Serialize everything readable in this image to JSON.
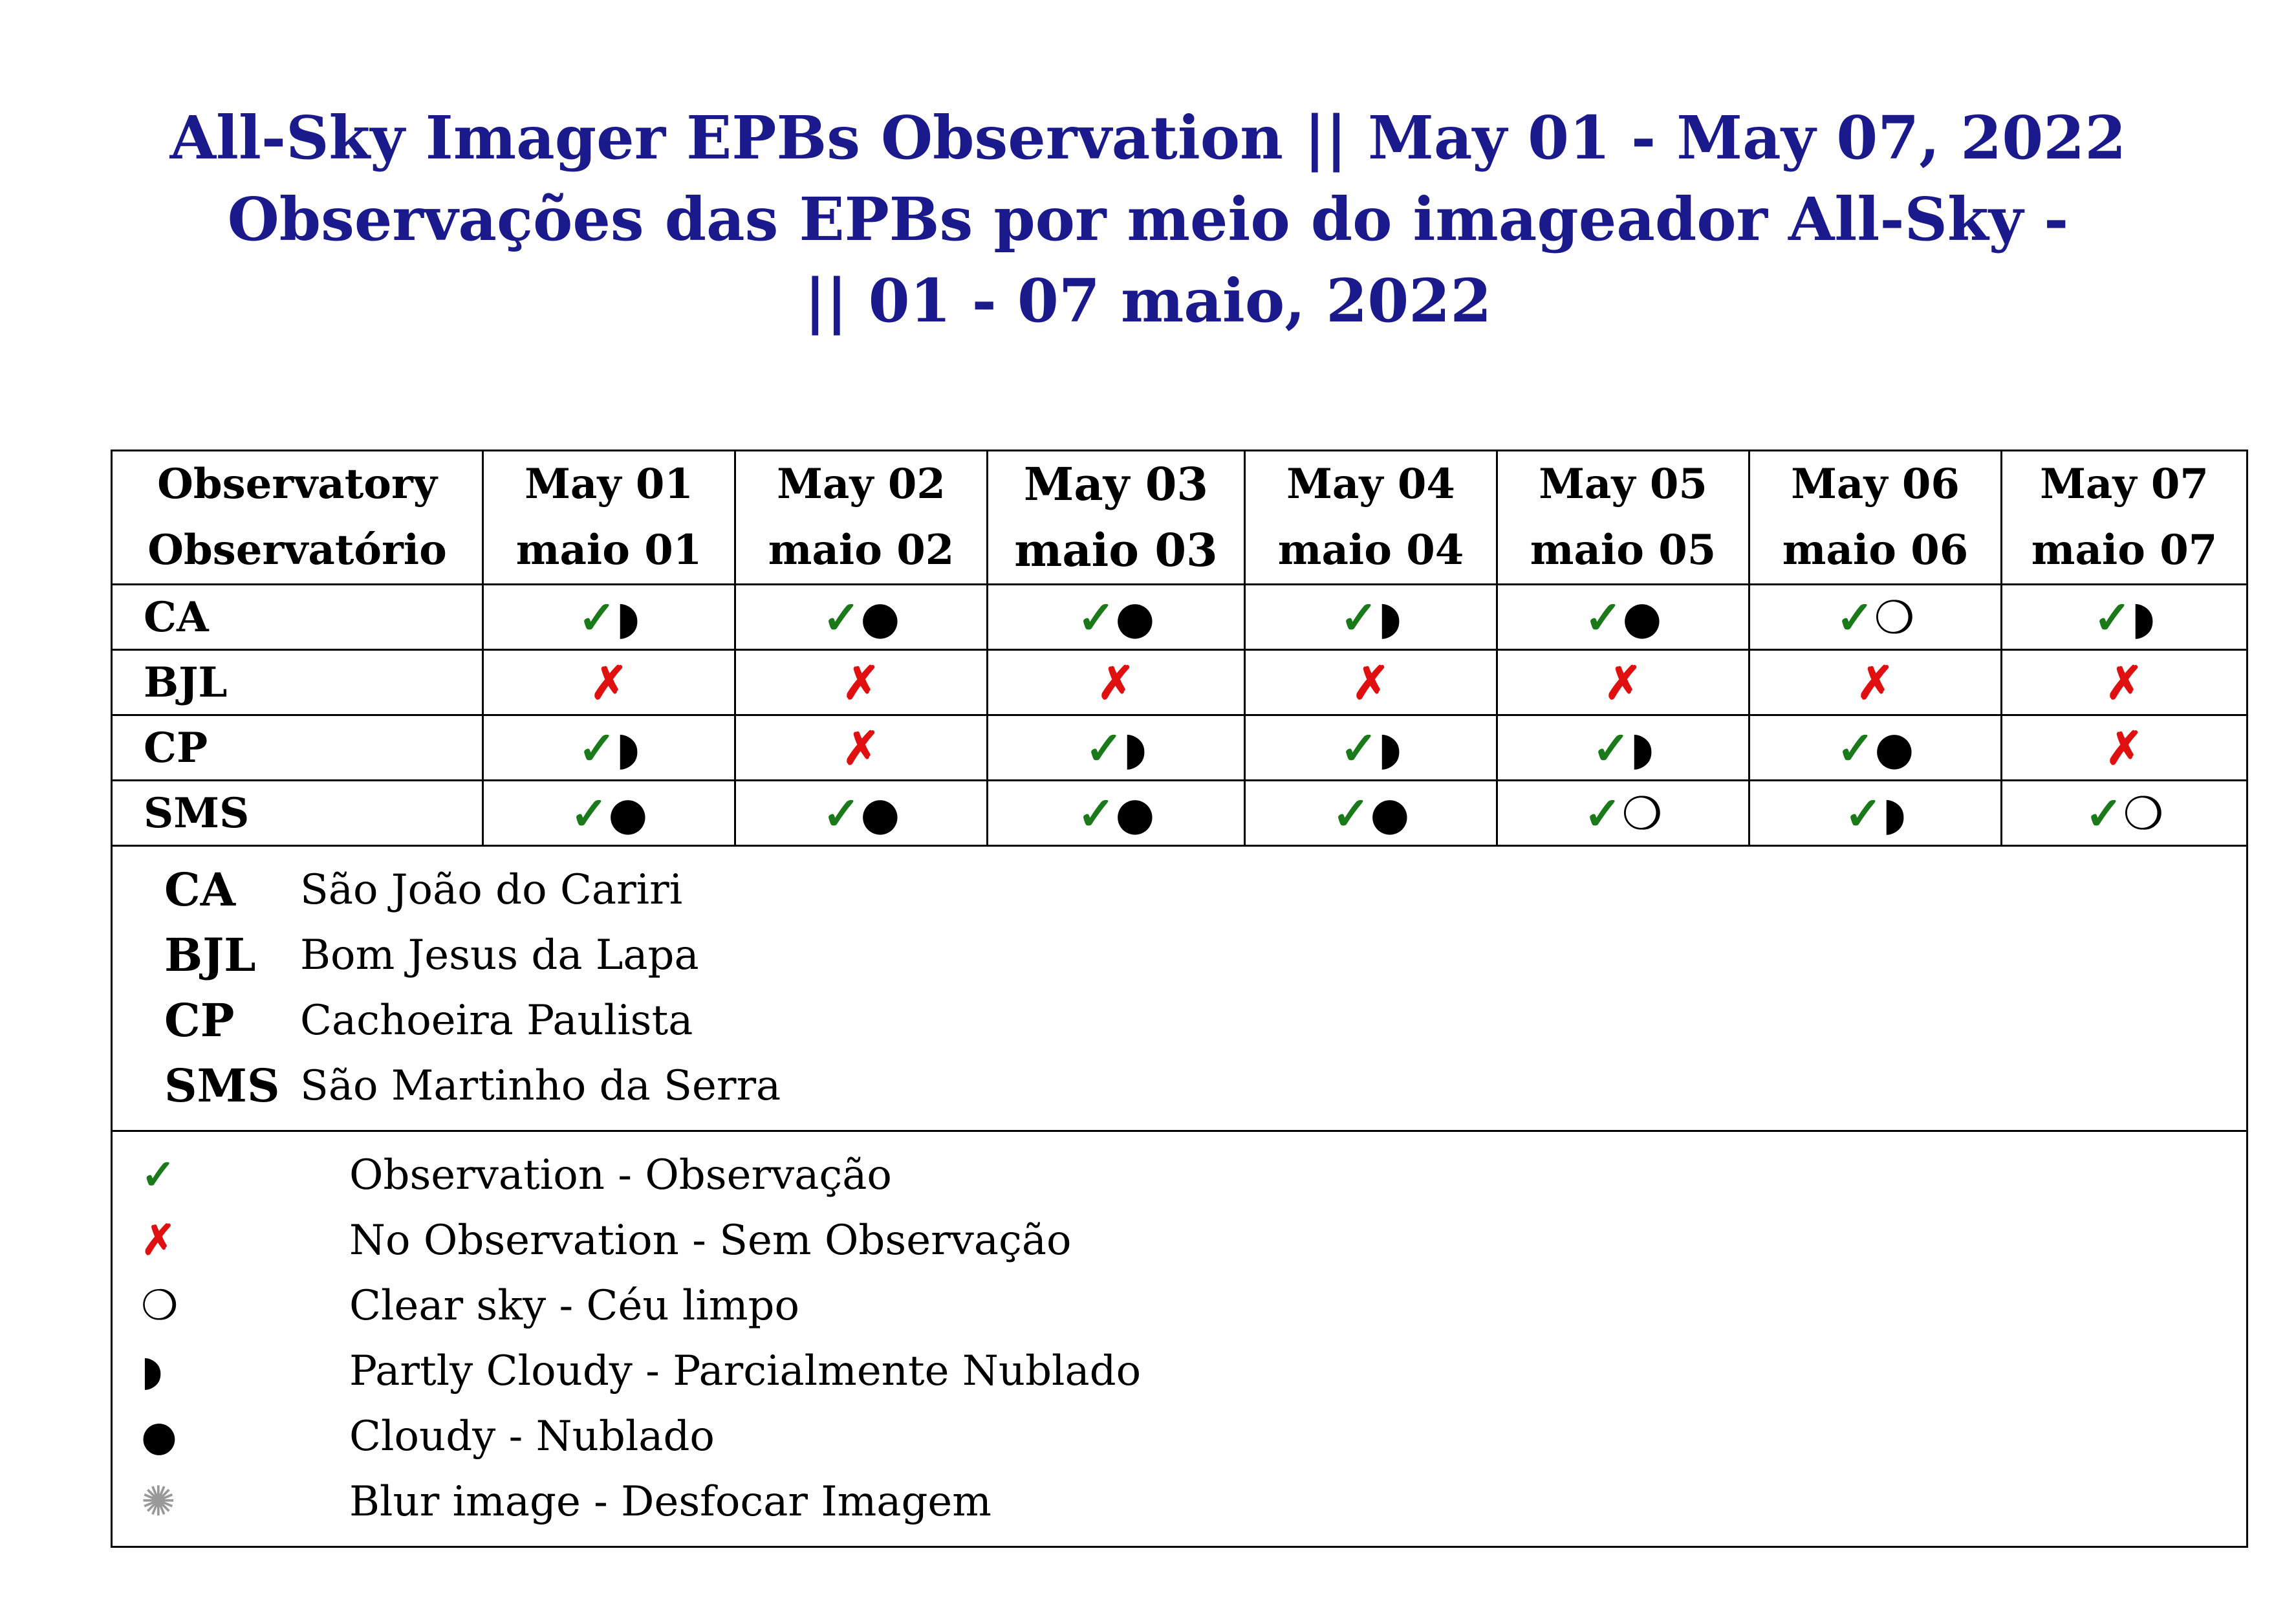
{
  "title": {
    "line1": "All-Sky Imager EPBs Observation || May 01 - May 07, 2022",
    "line2": "Observações das EPBs por meio do imageador All-Sky -",
    "line3": "|| 01 - 07 maio, 2022"
  },
  "header": {
    "observatory_en": "Observatory",
    "observatory_pt": "Observatório",
    "days": [
      {
        "en": "May 01",
        "pt": "maio 01"
      },
      {
        "en": "May 02",
        "pt": "maio 02"
      },
      {
        "en": "May 03",
        "pt": "maio 03"
      },
      {
        "en": "May 04",
        "pt": "maio 04"
      },
      {
        "en": "May 05",
        "pt": "maio 05"
      },
      {
        "en": "May 06",
        "pt": "maio 06"
      },
      {
        "en": "May 07",
        "pt": "maio 07"
      }
    ]
  },
  "rows": [
    {
      "code": "CA",
      "cells": [
        [
          "✓",
          "◗"
        ],
        [
          "✓",
          "●"
        ],
        [
          "✓",
          "●"
        ],
        [
          "✓",
          "◗"
        ],
        [
          "✓",
          "●"
        ],
        [
          "✓",
          "❍"
        ],
        [
          "✓",
          "◗"
        ]
      ]
    },
    {
      "code": "BJL",
      "cells": [
        [
          "✗",
          ""
        ],
        [
          "✗",
          ""
        ],
        [
          "✗",
          ""
        ],
        [
          "✗",
          ""
        ],
        [
          "✗",
          ""
        ],
        [
          "✗",
          ""
        ],
        [
          "✗",
          ""
        ]
      ]
    },
    {
      "code": "CP",
      "cells": [
        [
          "✓",
          "◗"
        ],
        [
          "✗",
          ""
        ],
        [
          "✓",
          "◗"
        ],
        [
          "✓",
          "◗"
        ],
        [
          "✓",
          "◗"
        ],
        [
          "✓",
          "●"
        ],
        [
          "✗",
          ""
        ]
      ]
    },
    {
      "code": "SMS",
      "cells": [
        [
          "✓",
          "●"
        ],
        [
          "✓",
          "●"
        ],
        [
          "✓",
          "●"
        ],
        [
          "✓",
          "●"
        ],
        [
          "✓",
          "❍"
        ],
        [
          "✓",
          "◗"
        ],
        [
          "✓",
          "❍"
        ]
      ]
    }
  ],
  "stations": [
    {
      "code": "CA",
      "name": "São João do Cariri"
    },
    {
      "code": "BJL",
      "name": "Bom Jesus da Lapa"
    },
    {
      "code": "CP",
      "name": "Cachoeira Paulista"
    },
    {
      "code": "SMS",
      "name": "São Martinho da Serra"
    }
  ],
  "symbols": [
    {
      "glyph": "✓",
      "color": "#1a7a1a",
      "label": "Observation - Observação"
    },
    {
      "glyph": "✗",
      "color": "#e01010",
      "label": "No Observation - Sem Observação"
    },
    {
      "glyph": "❍",
      "color": "#000000",
      "label": "Clear sky - Céu limpo"
    },
    {
      "glyph": "◗",
      "color": "#000000",
      "label": "Partly Cloudy - Parcialmente Nublado"
    },
    {
      "glyph": "●",
      "color": "#000000",
      "label": "Cloudy - Nublado"
    },
    {
      "glyph": "✺",
      "color": "#999999",
      "label": "Blur image - Desfocar Imagem"
    }
  ],
  "colors": {
    "title": "#1a1a8c",
    "observed": "#1a7a1a",
    "not_observed": "#e01010"
  }
}
